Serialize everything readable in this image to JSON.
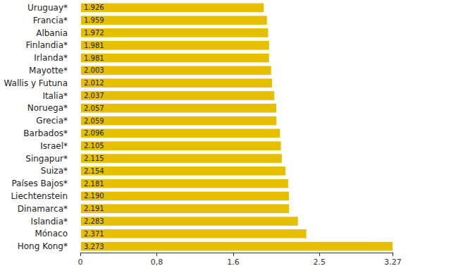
{
  "chart_data": {
    "type": "bar",
    "orientation": "horizontal",
    "categories": [
      "Uruguay*",
      "Francia*",
      "Albania",
      "Finlandia*",
      "Irlanda*",
      "Mayotte*",
      "Wallis y Futuna",
      "Italia*",
      "Noruega*",
      "Grecia*",
      "Barbados*",
      "Israel*",
      "Singapur*",
      "Suiza*",
      "Países Bajos*",
      "Liechtenstein",
      "Dinamarca*",
      "Islandia*",
      "Mónaco",
      "Hong Kong*"
    ],
    "values": [
      1.926,
      1.959,
      1.972,
      1.981,
      1.981,
      2.003,
      2.012,
      2.037,
      2.057,
      2.059,
      2.096,
      2.105,
      2.115,
      2.154,
      2.181,
      2.19,
      2.191,
      2.283,
      2.371,
      3.273
    ],
    "value_labels": [
      "1.926",
      "1.959",
      "1.972",
      "1.981",
      "1.981",
      "2.003",
      "2.012",
      "2.037",
      "2.057",
      "2.059",
      "2.096",
      "2.105",
      "2.115",
      "2.154",
      "2.181",
      "2.190",
      "2.191",
      "2.283",
      "2.371",
      "3.273"
    ],
    "color": "#e5bf00",
    "xlim": [
      0,
      3.273
    ],
    "xticks": [
      0,
      {
        "value": 0.8,
        "label": "0,8"
      },
      1.6,
      2.5,
      3.27
    ],
    "grid": false,
    "data_labels": true
  }
}
